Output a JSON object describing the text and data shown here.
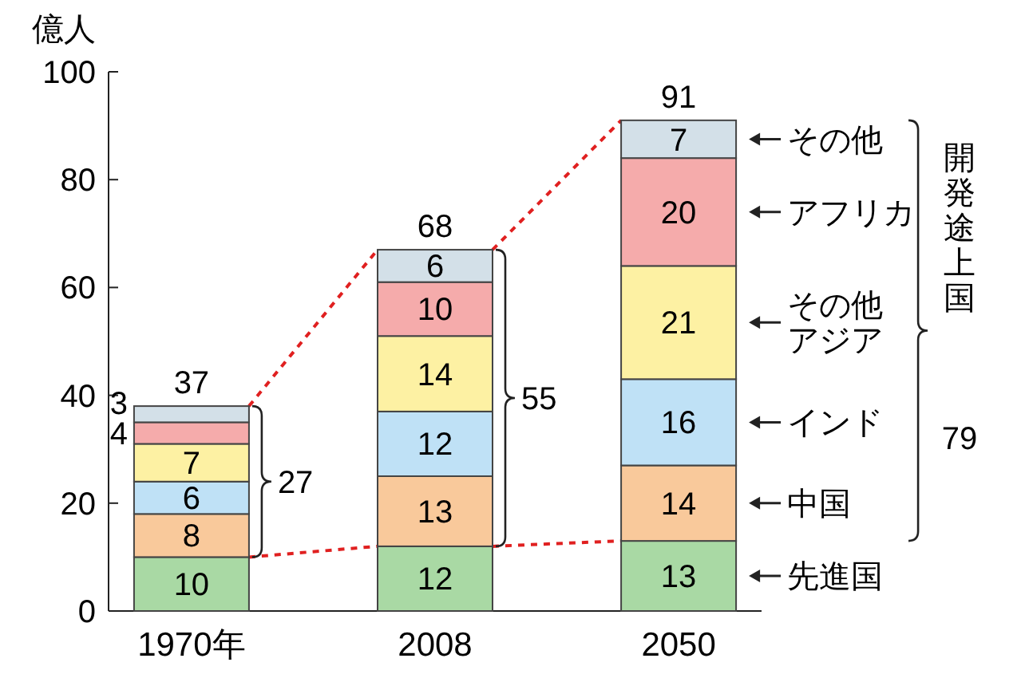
{
  "chart_data": {
    "type": "bar",
    "stacked": true,
    "ylabel": "億人",
    "categories": [
      "1970年",
      "2008",
      "2050"
    ],
    "series": [
      {
        "name": "先進国",
        "color": "#a9d9a4",
        "values": [
          10,
          12,
          13
        ]
      },
      {
        "name": "中国",
        "color": "#f9c99b",
        "values": [
          8,
          13,
          14
        ]
      },
      {
        "name": "インド",
        "color": "#bfe1f6",
        "values": [
          6,
          12,
          16
        ]
      },
      {
        "name": "その他アジア",
        "color": "#fdf1a3",
        "values": [
          7,
          14,
          21
        ]
      },
      {
        "name": "アフリカ",
        "color": "#f5abab",
        "values": [
          4,
          10,
          20
        ]
      },
      {
        "name": "その他",
        "color": "#d3e0e8",
        "values": [
          3,
          6,
          7
        ]
      }
    ],
    "ylim": [
      0,
      100
    ],
    "yticks": [
      0,
      20,
      40,
      60,
      80,
      100
    ],
    "data_labels": true,
    "totals": [
      "37",
      "68",
      "91"
    ],
    "legend": "right",
    "grid": false,
    "annotations": [
      "27",
      "55",
      "79",
      "開発途上国"
    ]
  }
}
